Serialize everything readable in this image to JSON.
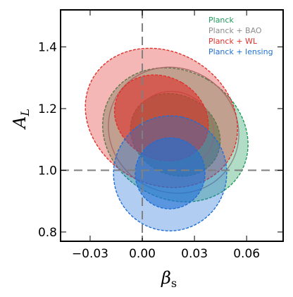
{
  "chart_data": {
    "type": "contour",
    "xlabel": "β",
    "xlabel_sub": "s",
    "ylabel": "A",
    "ylabel_sub": "L",
    "xlim": [
      -0.047,
      0.081
    ],
    "ylim": [
      0.77,
      1.52
    ],
    "xticks": [
      -0.03,
      0.0,
      0.03,
      0.06
    ],
    "xtick_labels": [
      "−0.03",
      "0.00",
      "0.03",
      "0.06"
    ],
    "yticks": [
      0.8,
      1.0,
      1.2,
      1.4
    ],
    "ytick_labels": [
      "0.8",
      "1.0",
      "1.2",
      "1.4"
    ],
    "reference_lines": {
      "x": 0.0,
      "y": 1.0
    },
    "legend_position": "top-right",
    "series": [
      {
        "name": "Planck",
        "color": "#1f9a5c",
        "center": [
          0.019,
          1.115
        ],
        "sigma": [
          0.015,
          0.1
        ],
        "rotation_deg": -60,
        "filled": true
      },
      {
        "name": "Planck + BAO",
        "color": "#8c8c8c",
        "center": [
          0.018,
          1.13
        ],
        "sigma": [
          0.0145,
          0.088
        ],
        "rotation_deg": -60,
        "filled": false
      },
      {
        "name": "Planck + WL",
        "color": "#e0302a",
        "center": [
          0.011,
          1.17
        ],
        "sigma": [
          0.0155,
          0.105
        ],
        "rotation_deg": -60,
        "filled": true
      },
      {
        "name": "Planck + lensing",
        "color": "#1f6fd6",
        "center": [
          0.016,
          0.99
        ],
        "sigma": [
          0.0135,
          0.075
        ],
        "rotation_deg": -78,
        "filled": true
      }
    ]
  }
}
